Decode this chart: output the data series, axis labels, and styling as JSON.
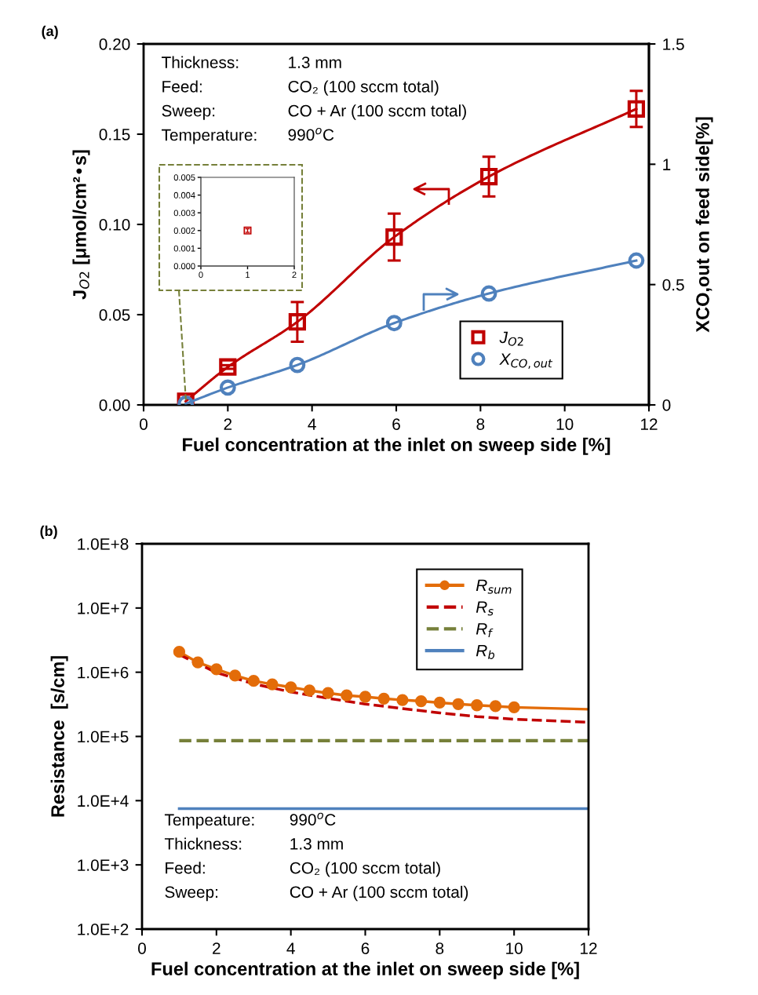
{
  "chart_data": [
    {
      "type": "line",
      "xlabel": "Fuel concentration at the inlet on sweep side [%]",
      "ylabel": "J$_{O2}$ [μmol/cm²•s]",
      "y2label": "XCO,out on feed side[%]",
      "annotations": [
        "(a)",
        "Thickness:",
        "1.3 mm",
        "Feed:",
        "CO₂ (100 sccm total)",
        "Sweep:",
        "CO + Ar (100 sccm total)",
        "Temperature:",
        "990$^{o}$C"
      ],
      "series": [
        {
          "name": "J$_{O2}$",
          "color": "#c00000",
          "x": [
            1.0,
            2.0,
            3.65,
            5.95,
            8.2,
            11.7
          ],
          "values": [
            0.002,
            0.021,
            0.046,
            0.093,
            0.1265,
            0.164
          ],
          "errors": [
            null,
            0.001,
            0.011,
            0.013,
            0.011,
            0.01
          ],
          "marker": "square"
        },
        {
          "name": "X$_{CO,out}$",
          "color": "#4f81bd",
          "axis": "y2",
          "x": [
            1.0,
            2.0,
            3.65,
            5.95,
            8.2,
            11.7
          ],
          "values": [
            0.005,
            0.072,
            0.166,
            0.34,
            0.463,
            0.6
          ],
          "marker": "circle"
        }
      ],
      "xlim": [
        0,
        12
      ],
      "xticks": [
        0,
        2,
        4,
        6,
        8,
        10,
        12
      ],
      "ylim": [
        0,
        0.2
      ],
      "yticks": [
        {
          "value": 0,
          "label": "0.00"
        },
        {
          "value": 0.05,
          "label": "0.05"
        },
        {
          "value": 0.1,
          "label": "0.10"
        },
        {
          "value": 0.15,
          "label": "0.15"
        },
        {
          "value": 0.2,
          "label": "0.20"
        }
      ],
      "y2lim": [
        0,
        1.5
      ],
      "y2ticks": [
        0,
        0.5,
        1,
        1.5
      ],
      "grid": false,
      "legend": "bottom right"
    },
    {
      "type": "scatter",
      "series": [
        {
          "color": "#c00000",
          "x": [
            1
          ],
          "values": [
            0.002
          ],
          "errors": [
            0.0001
          ],
          "marker": "square"
        }
      ],
      "xlim": [
        0,
        2
      ],
      "xticks": [
        0,
        1,
        2
      ],
      "ylim": [
        0,
        0.005
      ],
      "yticks": [
        {
          "value": 0,
          "label": "0.000"
        },
        {
          "value": 0.001,
          "label": "0.001"
        },
        {
          "value": 0.002,
          "label": "0.002"
        },
        {
          "value": 0.003,
          "label": "0.003"
        },
        {
          "value": 0.004,
          "label": "0.004"
        },
        {
          "value": 0.005,
          "label": "0.005"
        }
      ],
      "grid": false
    },
    {
      "type": "line",
      "xlabel": "Fuel concentration at the inlet on sweep side [%]",
      "ylabel": "Resistance  [s/cm]",
      "log": "y",
      "annotations": [
        "(b)",
        "Tempeature:",
        "990$^{o}$C",
        "Thickness:",
        "1.3 mm",
        "Feed:",
        "CO₂ (100 sccm total)",
        "Sweep:",
        "CO + Ar (100 sccm total)"
      ],
      "series": [
        {
          "name": "R$_{sum}$",
          "color": "#e36c09",
          "marker": "circle",
          "line_style": "solid",
          "x": [
            1,
            1.5,
            2,
            2.5,
            3,
            3.5,
            4,
            4.5,
            5,
            5.5,
            6,
            6.5,
            7,
            7.5,
            8,
            8.5,
            9,
            9.5,
            10
          ],
          "values": [
            2080000.0,
            1420000.0,
            1110000.0,
            886000.0,
            734000.0,
            648000.0,
            584000.0,
            520000.0,
            474000.0,
            436000.0,
            414000.0,
            388000.0,
            369000.0,
            354000.0,
            336000.0,
            319000.0,
            306000.0,
            296000.0,
            284000.0
          ]
        },
        {
          "color": "#e36c09",
          "marker": "none",
          "line_style": "solid",
          "x": [
            10,
            12
          ],
          "values": [
            284000.0,
            265000.0
          ]
        },
        {
          "name": "R$_{s}$",
          "color": "#c00000",
          "marker": "none",
          "line_style": "dashed",
          "x": [
            1,
            2,
            3,
            4,
            5,
            6,
            7,
            8,
            9,
            10,
            12
          ],
          "values": [
            1880000.0,
            984000.0,
            660000.0,
            493000.0,
            393000.0,
            319000.0,
            272000.0,
            233000.0,
            204000.0,
            185000.0,
            166000.0
          ]
        },
        {
          "name": "R$_{f}$",
          "color": "#76803a",
          "marker": "none",
          "line_style": "dashed",
          "x": [
            1,
            12
          ],
          "values": [
            86000.0,
            86000.0
          ]
        },
        {
          "name": "R$_{b}$",
          "color": "#4f81bd",
          "marker": "none",
          "line_style": "solid",
          "x": [
            1,
            12
          ],
          "values": [
            7500.0,
            7500.0
          ]
        }
      ],
      "xlim": [
        0,
        12
      ],
      "xticks": [
        0,
        2,
        4,
        6,
        8,
        10,
        12
      ],
      "ylim": [
        100,
        100000000.0
      ],
      "yticks": [
        {
          "value": 100,
          "label": "1.0E+2"
        },
        {
          "value": 1000,
          "label": "1.0E+3"
        },
        {
          "value": 10000,
          "label": "1.0E+4"
        },
        {
          "value": 100000,
          "label": "1.0E+5"
        },
        {
          "value": 1000000,
          "label": "1.0E+6"
        },
        {
          "value": 10000000,
          "label": "1.0E+7"
        },
        {
          "value": 100000000,
          "label": "1.0E+8"
        }
      ],
      "grid": false,
      "legend": "top right"
    }
  ]
}
